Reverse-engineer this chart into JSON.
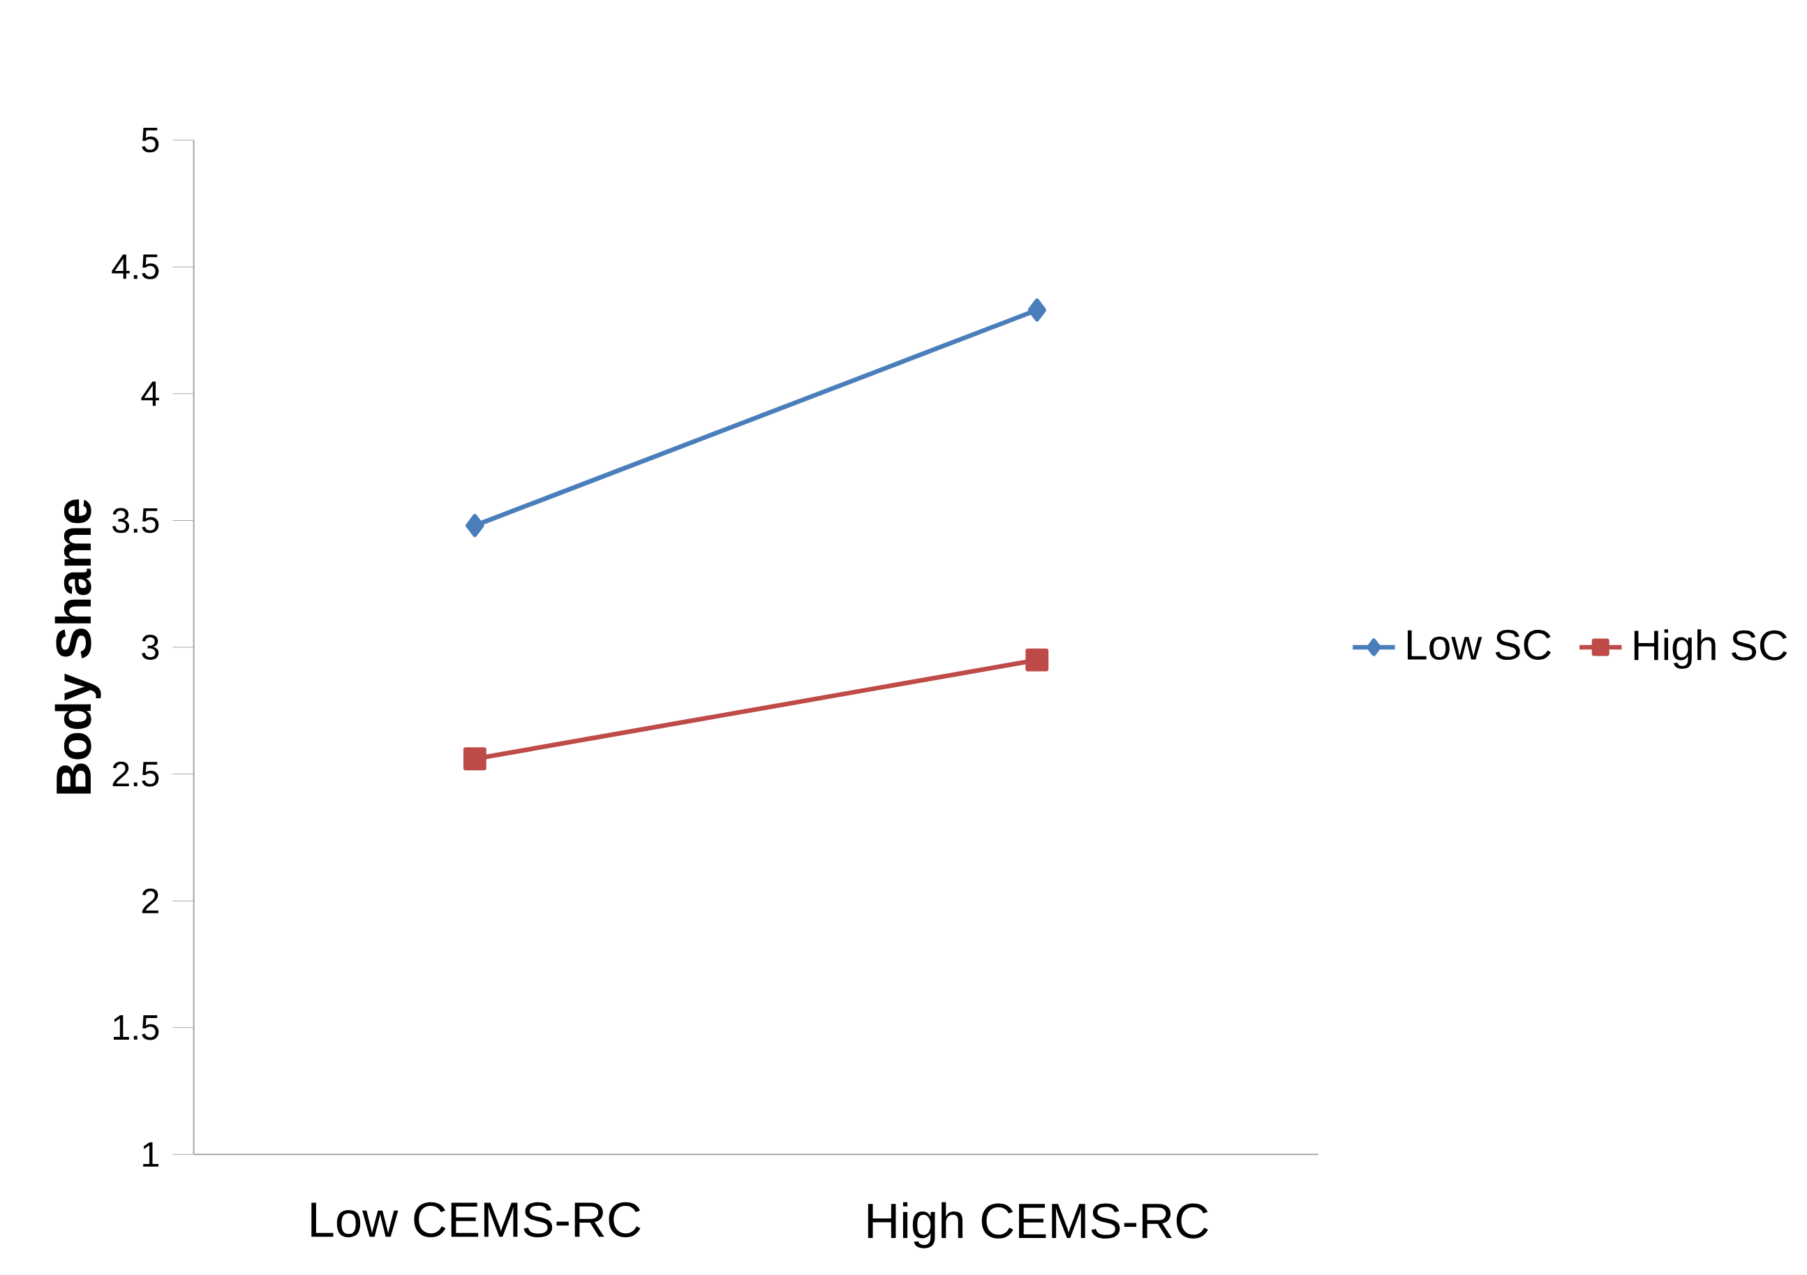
{
  "chart_data": {
    "type": "line",
    "ylabel": "Body Shame",
    "categories": [
      "Low CEMS-RC",
      "High CEMS-RC"
    ],
    "series": [
      {
        "name": "Low SC",
        "color": "#4a7ebb",
        "marker": "diamond",
        "values": [
          3.48,
          4.33
        ]
      },
      {
        "name": "High SC",
        "color": "#be4b48",
        "marker": "square",
        "values": [
          2.56,
          2.95
        ]
      }
    ],
    "ylim": [
      1,
      5
    ],
    "yticks": [
      1,
      1.5,
      2,
      2.5,
      3,
      3.5,
      4,
      4.5,
      5
    ],
    "legend": "right",
    "grid": false
  }
}
